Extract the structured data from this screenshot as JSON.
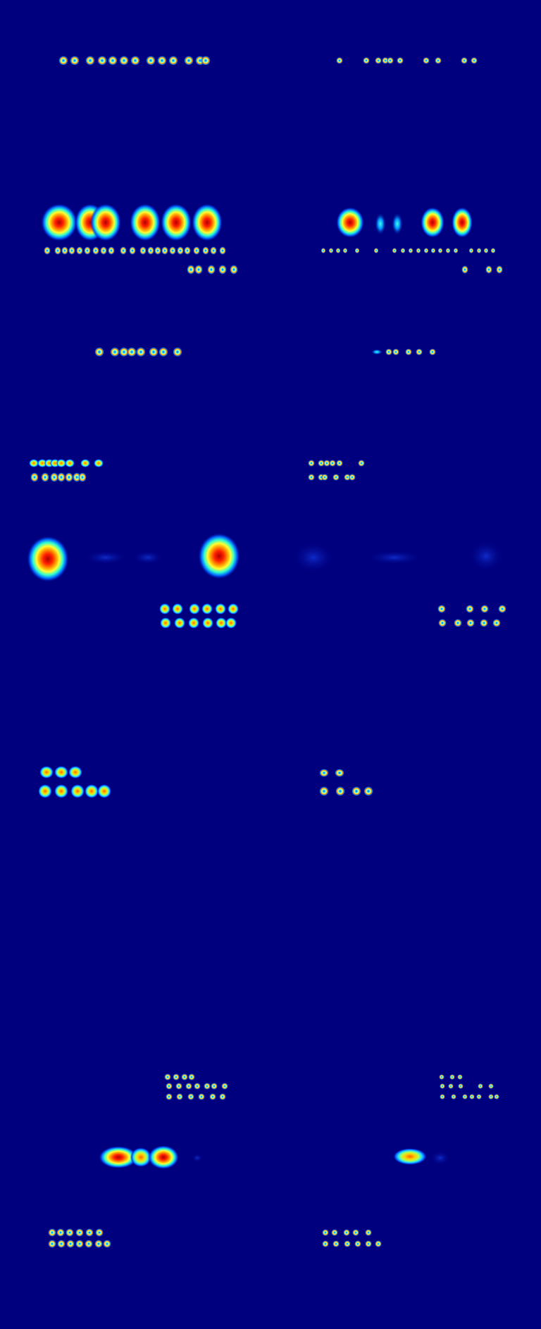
{
  "image": {
    "kind": "heatmap-blob-grid",
    "colormap": "jet",
    "background_color": "#00007f",
    "palette": [
      "#00007f",
      "#0000ff",
      "#00ffff",
      "#ffff00",
      "#ff0000",
      "#7f0000"
    ],
    "text_labels": []
  },
  "panels": [
    {
      "name": "row-1-left-panel"
    },
    {
      "name": "row-1-right-panel"
    },
    {
      "name": "row-2-left-panel"
    },
    {
      "name": "row-2-right-panel"
    },
    {
      "name": "row-3-left-panel"
    },
    {
      "name": "row-3-right-panel"
    },
    {
      "name": "row-4-left-panel"
    },
    {
      "name": "row-4-right-panel"
    },
    {
      "name": "row-5-left-panel"
    },
    {
      "name": "row-5-right-panel"
    },
    {
      "name": "row-6-left-panel"
    },
    {
      "name": "row-6-right-panel"
    },
    {
      "name": "row-7-left-panel"
    },
    {
      "name": "row-7-right-panel"
    },
    {
      "name": "row-8-left-panel"
    },
    {
      "name": "row-8-right-panel"
    }
  ]
}
